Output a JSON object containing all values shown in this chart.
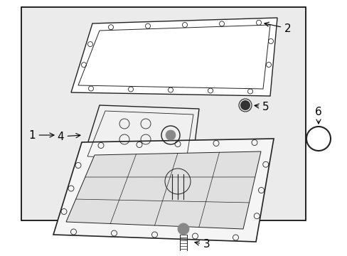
{
  "bg_color": "#ffffff",
  "diagram_bg": "#e8e8e8",
  "border_color": "#000000",
  "line_color": "#222222",
  "text_color": "#000000",
  "fig_width": 4.89,
  "fig_height": 3.6,
  "dpi": 100
}
